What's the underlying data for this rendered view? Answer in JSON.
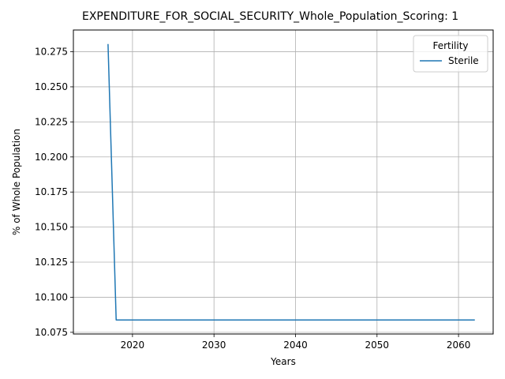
{
  "chart_data": {
    "type": "line",
    "title": "EXPENDITURE_FOR_SOCIAL_SECURITY_Whole_Population_Scoring: 1",
    "xlabel": "Years",
    "ylabel": "% of Whole Population",
    "xlim": [
      2012.75,
      2064.25
    ],
    "ylim": [
      10.0738,
      10.2905
    ],
    "x_ticks": [
      2020,
      2030,
      2040,
      2050,
      2060
    ],
    "x_tick_labels": [
      "2020",
      "2030",
      "2040",
      "2050",
      "2060"
    ],
    "y_ticks": [
      10.075,
      10.1,
      10.125,
      10.15,
      10.175,
      10.2,
      10.225,
      10.25,
      10.275
    ],
    "y_tick_labels": [
      "10.075",
      "10.100",
      "10.125",
      "10.150",
      "10.175",
      "10.200",
      "10.225",
      "10.250",
      "10.275"
    ],
    "grid": true,
    "legend": {
      "title": "Fertility",
      "placement": "top-right"
    },
    "series": [
      {
        "name": "Sterile",
        "color": "#1f77b4",
        "x": [
          2017,
          2018,
          2020,
          2030,
          2040,
          2050,
          2062
        ],
        "y": [
          10.2805,
          10.0838,
          10.0838,
          10.0838,
          10.0838,
          10.0838,
          10.0838
        ]
      }
    ]
  }
}
